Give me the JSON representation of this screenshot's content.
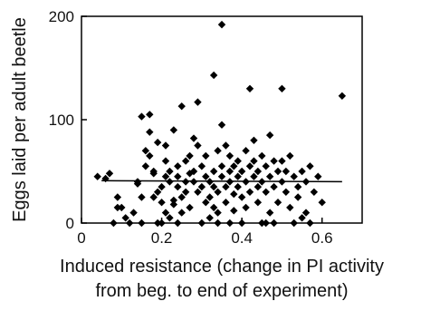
{
  "chart_data": {
    "type": "scatter",
    "title": "",
    "xlabel": "Induced resistance (change in PI activity",
    "xlabel_line2": "from beg. to end of experiment)",
    "ylabel": "Eggs laid per adult beetle",
    "xlim": [
      0,
      0.7
    ],
    "ylim": [
      0,
      200
    ],
    "x_ticks": [
      0,
      0.2,
      0.4,
      0.6
    ],
    "x_tick_labels": [
      "0",
      "0.2",
      "0.4",
      "0.6"
    ],
    "y_ticks": [
      0,
      100,
      200
    ],
    "y_tick_labels": [
      "0",
      "100",
      "200"
    ],
    "grid": false,
    "legend": "none",
    "marker": "diamond",
    "marker_color": "#000000",
    "fit_line": {
      "x": [
        0.05,
        0.65
      ],
      "y": [
        41,
        40
      ]
    },
    "points": [
      [
        0.04,
        45
      ],
      [
        0.06,
        43
      ],
      [
        0.07,
        48
      ],
      [
        0.08,
        0
      ],
      [
        0.09,
        15
      ],
      [
        0.09,
        25
      ],
      [
        0.1,
        15
      ],
      [
        0.11,
        5
      ],
      [
        0.12,
        0
      ],
      [
        0.13,
        10
      ],
      [
        0.14,
        38
      ],
      [
        0.14,
        40
      ],
      [
        0.15,
        0
      ],
      [
        0.15,
        103
      ],
      [
        0.15,
        25
      ],
      [
        0.16,
        55
      ],
      [
        0.16,
        70
      ],
      [
        0.17,
        65
      ],
      [
        0.17,
        88
      ],
      [
        0.17,
        105
      ],
      [
        0.18,
        48
      ],
      [
        0.18,
        50
      ],
      [
        0.18,
        25
      ],
      [
        0.19,
        0
      ],
      [
        0.19,
        78
      ],
      [
        0.19,
        30
      ],
      [
        0.2,
        35
      ],
      [
        0.2,
        20
      ],
      [
        0.2,
        0
      ],
      [
        0.21,
        10
      ],
      [
        0.21,
        45
      ],
      [
        0.21,
        60
      ],
      [
        0.21,
        75
      ],
      [
        0.22,
        50
      ],
      [
        0.22,
        40
      ],
      [
        0.22,
        5
      ],
      [
        0.23,
        18
      ],
      [
        0.23,
        22
      ],
      [
        0.23,
        90
      ],
      [
        0.24,
        35
      ],
      [
        0.24,
        45
      ],
      [
        0.24,
        55
      ],
      [
        0.24,
        0
      ],
      [
        0.25,
        10
      ],
      [
        0.25,
        25
      ],
      [
        0.25,
        113
      ],
      [
        0.26,
        60
      ],
      [
        0.26,
        40
      ],
      [
        0.26,
        30
      ],
      [
        0.27,
        48
      ],
      [
        0.27,
        15
      ],
      [
        0.27,
        65
      ],
      [
        0.28,
        82
      ],
      [
        0.28,
        50
      ],
      [
        0.28,
        40
      ],
      [
        0.29,
        30
      ],
      [
        0.29,
        75
      ],
      [
        0.29,
        117
      ],
      [
        0.3,
        55
      ],
      [
        0.3,
        35
      ],
      [
        0.3,
        0
      ],
      [
        0.31,
        45
      ],
      [
        0.31,
        65
      ],
      [
        0.31,
        20
      ],
      [
        0.32,
        40
      ],
      [
        0.32,
        25
      ],
      [
        0.32,
        5
      ],
      [
        0.33,
        50
      ],
      [
        0.33,
        35
      ],
      [
        0.33,
        143
      ],
      [
        0.33,
        15
      ],
      [
        0.34,
        30
      ],
      [
        0.34,
        10
      ],
      [
        0.34,
        70
      ],
      [
        0.34,
        0
      ],
      [
        0.35,
        45
      ],
      [
        0.35,
        55
      ],
      [
        0.35,
        95
      ],
      [
        0.35,
        192
      ],
      [
        0.36,
        35
      ],
      [
        0.36,
        20
      ],
      [
        0.36,
        75
      ],
      [
        0.37,
        50
      ],
      [
        0.37,
        40
      ],
      [
        0.37,
        65
      ],
      [
        0.37,
        0
      ],
      [
        0.38,
        28
      ],
      [
        0.38,
        55
      ],
      [
        0.38,
        12
      ],
      [
        0.39,
        45
      ],
      [
        0.39,
        35
      ],
      [
        0.39,
        60
      ],
      [
        0.4,
        50
      ],
      [
        0.4,
        25
      ],
      [
        0.4,
        0
      ],
      [
        0.41,
        40
      ],
      [
        0.41,
        70
      ],
      [
        0.41,
        15
      ],
      [
        0.42,
        130
      ],
      [
        0.42,
        55
      ],
      [
        0.42,
        30
      ],
      [
        0.43,
        45
      ],
      [
        0.43,
        80
      ],
      [
        0.43,
        60
      ],
      [
        0.44,
        35
      ],
      [
        0.44,
        50
      ],
      [
        0.44,
        20
      ],
      [
        0.45,
        0
      ],
      [
        0.45,
        40
      ],
      [
        0.45,
        65
      ],
      [
        0.46,
        55
      ],
      [
        0.46,
        0
      ],
      [
        0.46,
        30
      ],
      [
        0.47,
        85
      ],
      [
        0.47,
        45
      ],
      [
        0.47,
        10
      ],
      [
        0.48,
        0
      ],
      [
        0.48,
        60
      ],
      [
        0.48,
        35
      ],
      [
        0.49,
        50
      ],
      [
        0.49,
        20
      ],
      [
        0.5,
        130
      ],
      [
        0.5,
        40
      ],
      [
        0.5,
        60
      ],
      [
        0.51,
        30
      ],
      [
        0.51,
        50
      ],
      [
        0.52,
        15
      ],
      [
        0.52,
        65
      ],
      [
        0.53,
        45
      ],
      [
        0.53,
        0
      ],
      [
        0.54,
        35
      ],
      [
        0.54,
        25
      ],
      [
        0.55,
        50
      ],
      [
        0.55,
        5
      ],
      [
        0.56,
        10
      ],
      [
        0.56,
        40
      ],
      [
        0.57,
        55
      ],
      [
        0.57,
        0
      ],
      [
        0.58,
        30
      ],
      [
        0.59,
        45
      ],
      [
        0.6,
        20
      ],
      [
        0.65,
        123
      ]
    ]
  }
}
